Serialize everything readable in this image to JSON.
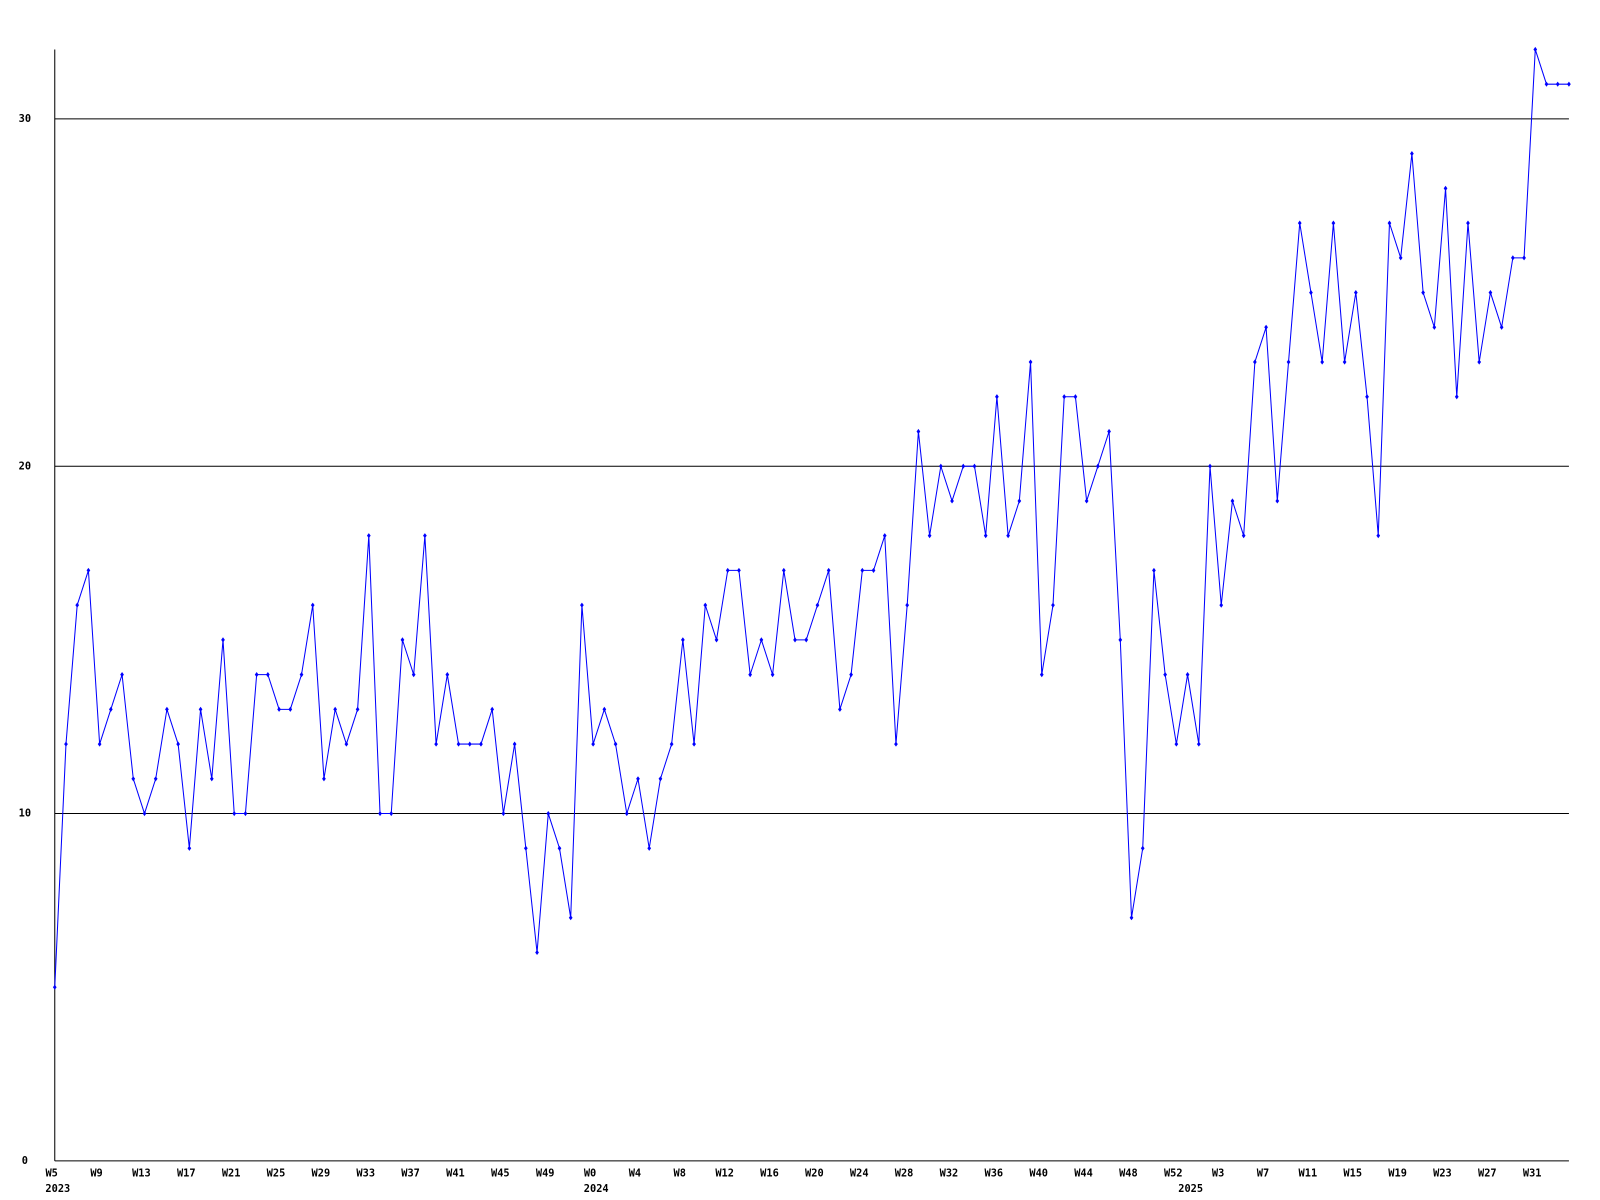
{
  "chart_data": {
    "type": "line",
    "categories": [
      "W5",
      null,
      null,
      null,
      "W9",
      null,
      null,
      null,
      "W13",
      null,
      null,
      null,
      "W17",
      null,
      null,
      null,
      "W21",
      null,
      null,
      null,
      "W25",
      null,
      null,
      null,
      "W29",
      null,
      null,
      null,
      "W33",
      null,
      null,
      null,
      "W37",
      null,
      null,
      null,
      "W41",
      null,
      null,
      null,
      "W45",
      null,
      null,
      null,
      "W49",
      null,
      null,
      null,
      "W0",
      null,
      null,
      null,
      "W4",
      null,
      null,
      null,
      "W8",
      null,
      null,
      null,
      "W12",
      null,
      null,
      null,
      "W16",
      null,
      null,
      null,
      "W20",
      null,
      null,
      null,
      "W24",
      null,
      null,
      null,
      "W28",
      null,
      null,
      null,
      "W32",
      null,
      null,
      null,
      "W36",
      null,
      null,
      null,
      "W40",
      null,
      null,
      null,
      "W44",
      null,
      null,
      null,
      "W48",
      null,
      null,
      null,
      "W52",
      null,
      null,
      null,
      "W3",
      null,
      null,
      null,
      "W7",
      null,
      null,
      null,
      "W11",
      null,
      null,
      null,
      "W15",
      null,
      null,
      null,
      "W19",
      null,
      null,
      null,
      "W23",
      null,
      null,
      null,
      "W27",
      null,
      null,
      null,
      "W31",
      null,
      null,
      null
    ],
    "years": [
      "2023",
      null,
      null,
      null,
      null,
      null,
      null,
      null,
      null,
      null,
      null,
      null,
      null,
      null,
      null,
      null,
      null,
      null,
      null,
      null,
      null,
      null,
      null,
      null,
      null,
      null,
      null,
      null,
      null,
      null,
      null,
      null,
      null,
      null,
      null,
      null,
      null,
      null,
      null,
      null,
      null,
      null,
      null,
      null,
      null,
      null,
      null,
      null,
      "2024",
      null,
      null,
      null,
      null,
      null,
      null,
      null,
      null,
      null,
      null,
      null,
      null,
      null,
      null,
      null,
      null,
      null,
      null,
      null,
      null,
      null,
      null,
      null,
      null,
      null,
      null,
      null,
      null,
      null,
      null,
      null,
      null,
      null,
      null,
      null,
      null,
      null,
      null,
      null,
      null,
      null,
      null,
      null,
      null,
      null,
      null,
      null,
      null,
      null,
      null,
      null,
      null,
      "2025",
      null,
      null,
      null,
      null,
      null,
      null,
      null,
      null,
      null,
      null,
      null,
      null,
      null,
      null,
      null,
      null,
      null,
      null,
      null,
      null,
      null,
      null,
      null,
      null,
      null,
      null,
      null,
      null,
      null,
      null,
      null,
      null,
      null,
      null
    ],
    "series": [
      {
        "color": "#0000ff",
        "values": [
          5,
          12,
          16,
          17,
          12,
          13,
          14,
          11,
          10,
          11,
          13,
          12,
          9,
          13,
          11,
          15,
          10,
          10,
          14,
          14,
          13,
          13,
          14,
          16,
          11,
          13,
          12,
          13,
          18,
          10,
          10,
          15,
          14,
          18,
          12,
          14,
          12,
          12,
          12,
          13,
          10,
          12,
          9,
          6,
          10,
          9,
          7,
          16,
          12,
          13,
          12,
          10,
          11,
          9,
          11,
          12,
          15,
          12,
          16,
          15,
          17,
          17,
          14,
          15,
          14,
          17,
          15,
          15,
          16,
          17,
          13,
          14,
          17,
          17,
          18,
          12,
          16,
          21,
          18,
          20,
          19,
          20,
          20,
          18,
          22,
          18,
          19,
          23,
          14,
          16,
          22,
          22,
          19,
          20,
          21,
          15,
          7,
          9,
          17,
          14,
          12,
          14,
          12,
          20,
          16,
          19,
          18,
          23,
          24,
          19,
          23,
          27,
          25,
          23,
          27,
          23,
          25,
          22,
          18,
          27,
          26,
          29,
          25,
          24,
          28,
          22,
          27,
          23,
          25,
          24,
          26,
          26,
          32,
          31,
          31,
          31
        ]
      }
    ],
    "ylim": [
      0,
      32
    ],
    "yticks": [
      0,
      10,
      20,
      30
    ],
    "grid": true
  }
}
